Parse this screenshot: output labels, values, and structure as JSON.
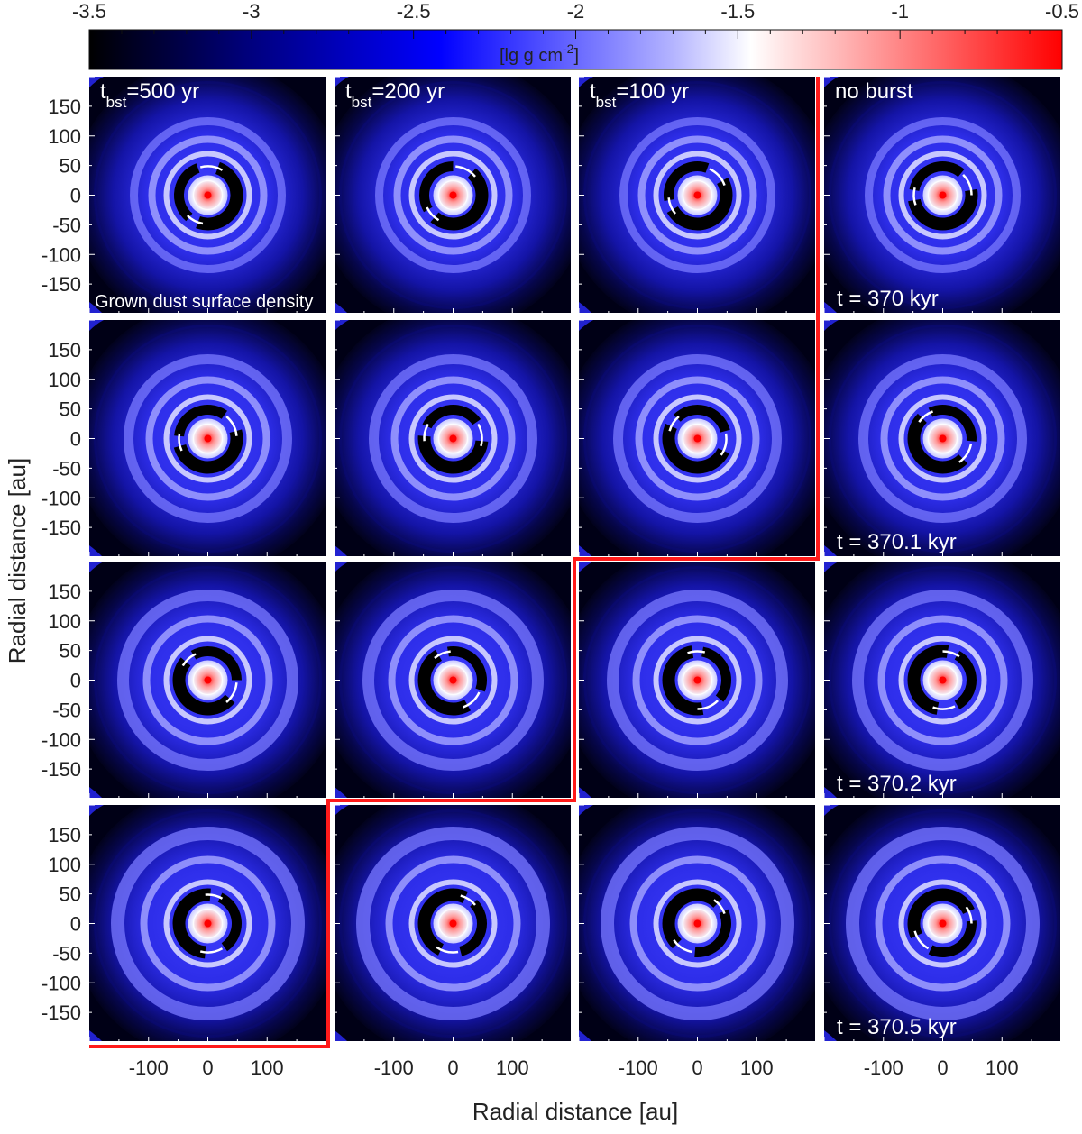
{
  "colorbar": {
    "ticks": [
      "-3.5",
      "-3",
      "-2.5",
      "-2",
      "-1.5",
      "-1",
      "-0.5"
    ],
    "unit_main": "[lg g cm",
    "unit_sup": "-2",
    "unit_close": "]",
    "stops": [
      "#000000",
      "#00007a",
      "#0000ff",
      "#b4b4ff",
      "#ffffff",
      "#ff9090",
      "#ff0000"
    ]
  },
  "columns": [
    {
      "prefix": "t",
      "subscript": "bst",
      "suffix": "=500 yr"
    },
    {
      "prefix": "t",
      "subscript": "bst",
      "suffix": "=200 yr"
    },
    {
      "prefix": "t",
      "subscript": "bst",
      "suffix": "=100 yr"
    },
    {
      "prefix": "no burst",
      "subscript": "",
      "suffix": ""
    }
  ],
  "rows": [
    {
      "time": "t = 370 kyr"
    },
    {
      "time": "t = 370.1 kyr"
    },
    {
      "time": "t = 370.2 kyr"
    },
    {
      "time": "t = 370.5 kyr"
    }
  ],
  "panel_note": "Grown dust surface density",
  "y_ticks": [
    "150",
    "100",
    "50",
    "0",
    "-50",
    "-100",
    "-150"
  ],
  "x_ticks": [
    "-100",
    "0",
    "100"
  ],
  "y_axis_label": "Radial distance [au]",
  "x_axis_label": "Radial distance [au]",
  "separator_color": "#ff1a1a",
  "axis_range_au": [
    -200,
    200
  ]
}
